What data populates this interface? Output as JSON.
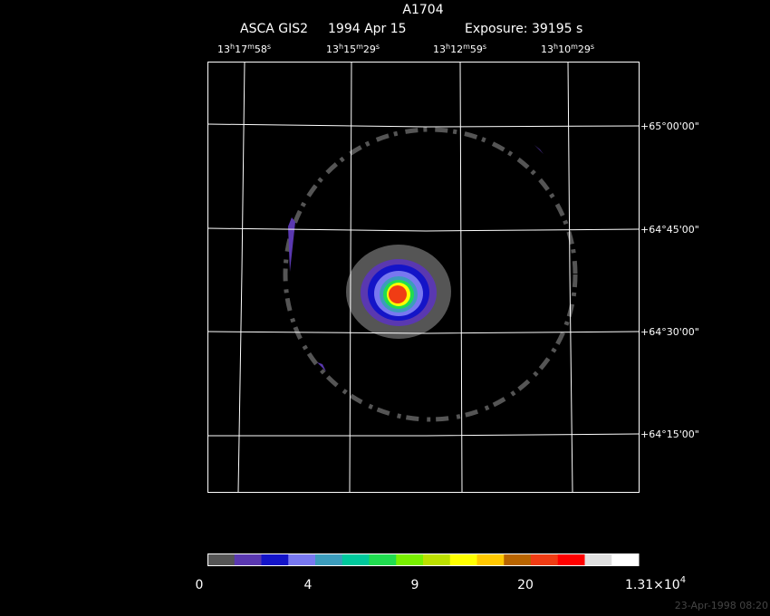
{
  "header": {
    "title": "A1704",
    "instrument": "ASCA GIS2",
    "date": "1994 Apr 15",
    "exposure": "Exposure: 39195 s"
  },
  "ra_units": [
    "h",
    "m",
    "s"
  ],
  "ra_labels": [
    {
      "hours": "13",
      "minutes": "17",
      "seconds": "58"
    },
    {
      "hours": "13",
      "minutes": "15",
      "seconds": "29"
    },
    {
      "hours": "13",
      "minutes": "12",
      "seconds": "59"
    },
    {
      "hours": "13",
      "minutes": "10",
      "seconds": "29"
    }
  ],
  "dec_labels": [
    "+65°00'00\"",
    "+64°45'00\"",
    "+64°30'00\"",
    "+64°15'00\""
  ],
  "colorbar": {
    "colors": [
      "#555555",
      "#5a38b0",
      "#1414c8",
      "#7878f0",
      "#3c9cbc",
      "#00c89c",
      "#20dc50",
      "#78f000",
      "#bce000",
      "#ffff00",
      "#ffc800",
      "#b86400",
      "#f03c14",
      "#ff0000",
      "#e0e0e0",
      "#ffffff"
    ],
    "labels": [
      "0",
      "4",
      "9",
      "20"
    ],
    "max_label": {
      "mantissa": "1.31×10",
      "exponent": "4"
    }
  },
  "timestamp": "23-Apr-1998 08:20"
}
